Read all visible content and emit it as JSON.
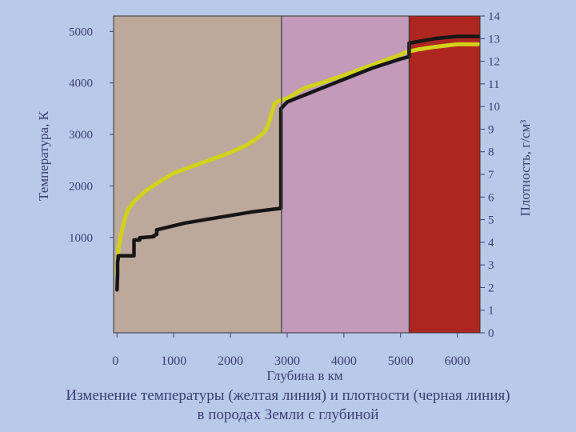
{
  "chart_data": {
    "type": "line",
    "title": "",
    "caption": [
      "Изменение температуры (желтая линия) и плотности (черная линия)",
      "в породах Земли с глубиной"
    ],
    "xlabel": "Глубина в км",
    "ylabel_left": "Температура, К",
    "ylabel_right": "Плотность, г/см³",
    "xlim": [
      -60,
      6400
    ],
    "ylim_left": [
      -850,
      5300
    ],
    "ylim_right": [
      0,
      14
    ],
    "x_ticks": [
      "0",
      "1000",
      "2000",
      "3000",
      "4000",
      "5000",
      "6000"
    ],
    "y_left_ticks": [
      "1000",
      "2000",
      "3000",
      "4000",
      "5000"
    ],
    "y_right_ticks": [
      "0",
      "1",
      "2",
      "3",
      "4",
      "5",
      "6",
      "7",
      "8",
      "9",
      "10",
      "11",
      "12",
      "13",
      "14"
    ],
    "regions": [
      {
        "from": -60,
        "to": 2900,
        "color": "#bca99c"
      },
      {
        "from": 2900,
        "to": 5150,
        "color": "#c39ab9"
      },
      {
        "from": 5150,
        "to": 6400,
        "color": "#ae2620"
      }
    ],
    "colors": {
      "axis_text": "#3a3f74",
      "temperature_line": "#d2d21a",
      "density_line": "#161616",
      "region_border": "#3a3a3a"
    },
    "series": [
      {
        "name": "температура",
        "axis": "left",
        "x": [
          0,
          10,
          30,
          60,
          100,
          150,
          200,
          300,
          400,
          500,
          700,
          1000,
          1500,
          2000,
          2300,
          2500,
          2600,
          2650,
          2700,
          2750,
          2780,
          2850,
          3000,
          3300,
          3600,
          4000,
          4500,
          5000,
          5100,
          5300,
          5600,
          6000,
          6371
        ],
        "y": [
          300,
          600,
          800,
          1000,
          1200,
          1400,
          1550,
          1700,
          1800,
          1900,
          2050,
          2250,
          2450,
          2650,
          2800,
          2950,
          3050,
          3150,
          3300,
          3500,
          3600,
          3650,
          3700,
          3900,
          4000,
          4150,
          4350,
          4550,
          4600,
          4650,
          4700,
          4750,
          4750
        ]
      },
      {
        "name": "плотность",
        "axis": "right",
        "x": [
          0,
          10,
          10,
          20,
          20,
          300,
          300,
          400,
          400,
          650,
          650,
          700,
          700,
          1200,
          1800,
          2400,
          2890,
          2890,
          3000,
          3500,
          4000,
          4500,
          5000,
          5150,
          5150,
          5600,
          6000,
          6371
        ],
        "y": [
          1.9,
          2.6,
          3.1,
          3.3,
          3.4,
          3.4,
          4.1,
          4.1,
          4.2,
          4.25,
          4.3,
          4.35,
          4.55,
          4.85,
          5.1,
          5.35,
          5.5,
          9.9,
          10.2,
          10.7,
          11.2,
          11.7,
          12.1,
          12.2,
          12.8,
          13.0,
          13.1,
          13.1
        ]
      }
    ]
  }
}
